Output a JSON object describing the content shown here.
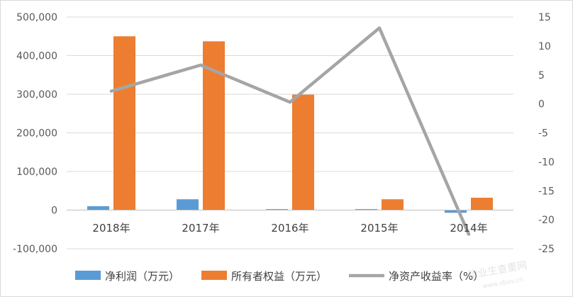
{
  "chart_data": {
    "type": "bar",
    "categories": [
      "2018年",
      "2017年",
      "2016年",
      "2015年",
      "2014年"
    ],
    "series": [
      {
        "name": "净利润（万元）",
        "kind": "bar",
        "axis": "left",
        "color": "#5b9bd5",
        "values": [
          10000,
          28000,
          2500,
          2500,
          -7000
        ]
      },
      {
        "name": "所有者权益（万元）",
        "kind": "bar",
        "axis": "left",
        "color": "#ed7d31",
        "values": [
          450000,
          437000,
          299000,
          28000,
          32000
        ]
      },
      {
        "name": "净资产收益率（%）",
        "kind": "line",
        "axis": "right",
        "color": "#a5a5a5",
        "values": [
          2.2,
          6.7,
          0.3,
          13.1,
          -22.5
        ]
      }
    ],
    "yleft": {
      "ylim": [
        -100000,
        500000
      ],
      "ticks": [
        -100000,
        0,
        100000,
        200000,
        300000,
        400000,
        500000
      ],
      "tick_labels": [
        "-100,000",
        "0",
        "100,000",
        "200,000",
        "300,000",
        "400,000",
        "500,000"
      ]
    },
    "yright": {
      "ylim": [
        -25,
        15
      ],
      "ticks": [
        -25,
        -20,
        -15,
        -10,
        -5,
        0,
        5,
        10,
        15
      ],
      "tick_labels": [
        "-25",
        "-20",
        "-15",
        "-10",
        "-5",
        "0",
        "5",
        "10",
        "15"
      ]
    },
    "grid": true,
    "legend_position": "bottom"
  },
  "watermark": {
    "text": "毕业生查重网",
    "url": "www.sbvv.cn"
  }
}
